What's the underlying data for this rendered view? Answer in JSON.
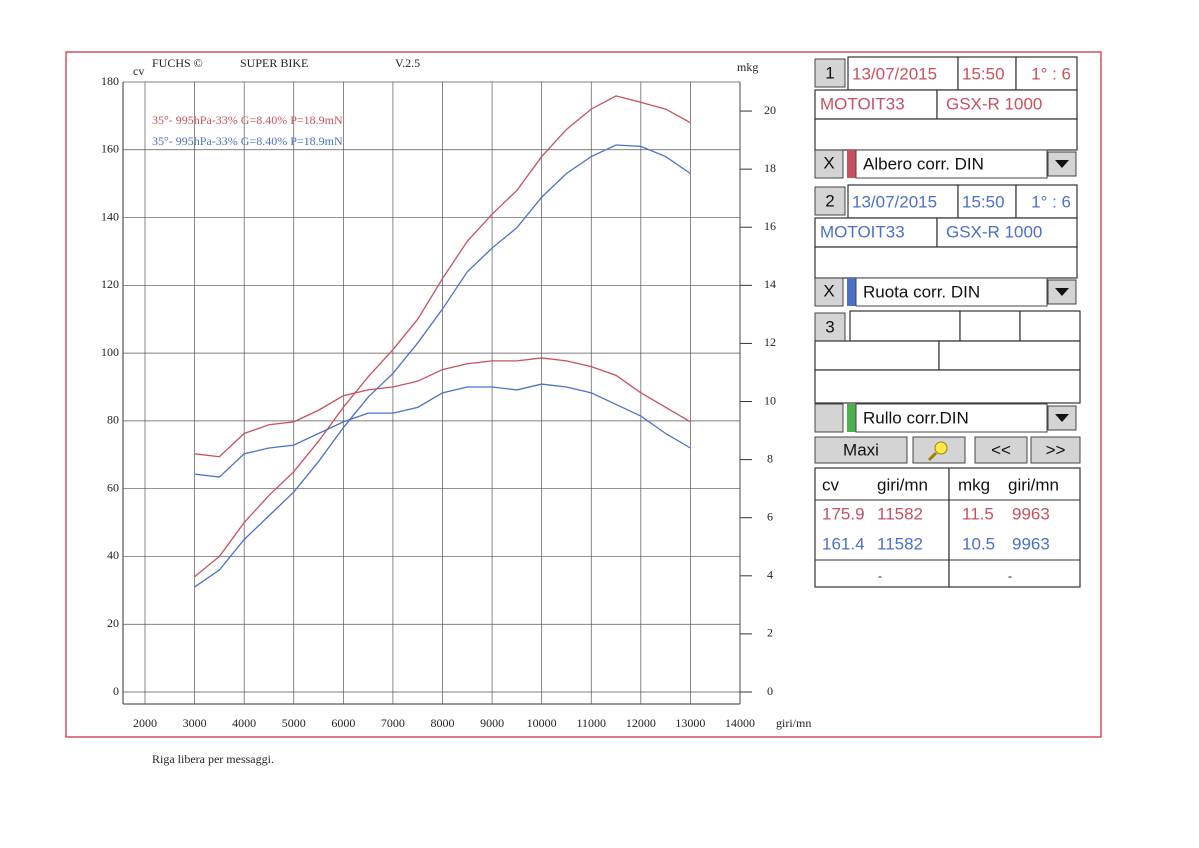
{
  "chart_data": {
    "type": "line",
    "header": [
      "FUCHS ©",
      "SUPER BIKE",
      "V.2.5"
    ],
    "ylabel": "cv",
    "y2label": "mkg",
    "xlabel": "giri/mn",
    "x": [
      3000,
      3500,
      4000,
      4500,
      5000,
      5500,
      6000,
      6500,
      7000,
      7500,
      8000,
      8500,
      9000,
      9500,
      10000,
      10500,
      11000,
      11500,
      12000,
      12500,
      13000
    ],
    "series": [
      {
        "name": "35°- 995hPa-33% G=8.40% P=18.9mN",
        "color": "#c8505f",
        "values": [
          34,
          40,
          50,
          58,
          65,
          74,
          84,
          93,
          101,
          110,
          122,
          133,
          141,
          148,
          158,
          166,
          172,
          175.9,
          174,
          172,
          168
        ]
      },
      {
        "name": "35°- 995hPa-33% G=8.40% P=18.9mN",
        "color": "#4a70c8",
        "values": [
          31,
          36,
          45,
          52,
          59,
          68,
          78,
          87,
          94,
          103,
          113,
          124,
          131,
          137,
          146,
          153,
          158,
          161.4,
          161,
          158,
          153
        ]
      },
      {
        "color": "#c8505f",
        "axis": "y2",
        "values": [
          8.2,
          8.1,
          8.9,
          9.2,
          9.3,
          9.7,
          10.2,
          10.4,
          10.5,
          10.7,
          11.1,
          11.3,
          11.4,
          11.4,
          11.5,
          11.4,
          11.2,
          10.9,
          10.3,
          9.8,
          9.3
        ]
      },
      {
        "color": "#4a70c8",
        "axis": "y2",
        "values": [
          7.5,
          7.4,
          8.2,
          8.4,
          8.5,
          8.9,
          9.3,
          9.6,
          9.6,
          9.8,
          10.3,
          10.5,
          10.5,
          10.4,
          10.6,
          10.5,
          10.3,
          9.9,
          9.5,
          8.9,
          8.4
        ]
      }
    ],
    "xlim": [
      2000,
      14000
    ],
    "xticks": [
      2000,
      3000,
      4000,
      5000,
      6000,
      7000,
      8000,
      9000,
      10000,
      11000,
      12000,
      13000,
      14000
    ],
    "ylim": [
      0,
      180
    ],
    "yticks": [
      0,
      20,
      40,
      60,
      80,
      100,
      120,
      140,
      160,
      180
    ],
    "y2lim": [
      0,
      21
    ],
    "y2ticks": [
      0,
      2,
      4,
      6,
      8,
      10,
      12,
      14,
      16,
      18,
      20
    ],
    "grid": true
  },
  "panel": {
    "slots": [
      {
        "number": "1",
        "date": "13/07/2015",
        "time": "15:50",
        "gear": "1° : 6",
        "rider": "MOTOIT33",
        "bike": "GSX-R 1000",
        "close": "X",
        "curve": "Albero corr. DIN"
      },
      {
        "number": "2",
        "date": "13/07/2015",
        "time": "15:50",
        "gear": "1° : 6",
        "rider": "MOTOIT33",
        "bike": "GSX-R 1000",
        "close": "X",
        "curve": "Ruota corr. DIN"
      },
      {
        "number": "3",
        "curve": "Rullo corr.DIN"
      }
    ],
    "buttons": [
      "Maxi",
      "<<",
      ">>"
    ],
    "table": {
      "headers": [
        "cv",
        "giri/mn",
        "mkg",
        "giri/mn"
      ],
      "rows": [
        [
          175.9,
          11582,
          11.5,
          9963
        ],
        [
          161.4,
          11582,
          10.5,
          9963
        ],
        [
          "-",
          "-"
        ]
      ]
    }
  },
  "footer": "Riga libera per messaggi."
}
